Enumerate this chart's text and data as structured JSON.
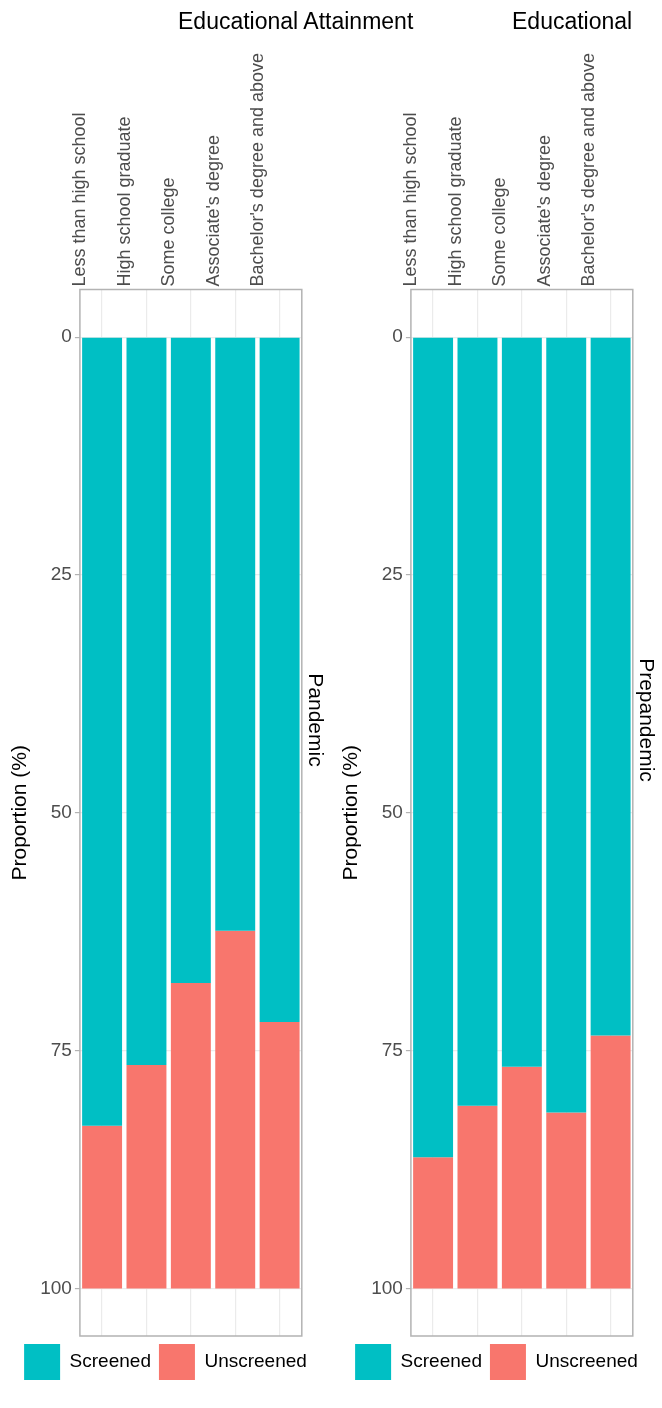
{
  "chart_data": [
    {
      "type": "bar",
      "title": "Educational Attainment",
      "subtitle": "Pandemic",
      "ylabel": "Proportion (%)",
      "stacked": true,
      "categories": [
        "Less than high school",
        "High school graduate",
        "Some college",
        "Associate's degree",
        "Bachelor's degree and above"
      ],
      "series": [
        {
          "name": "Screened",
          "color": "#00bfc4",
          "values": [
            82.9,
            76.5,
            67.9,
            62.4,
            72.0
          ]
        },
        {
          "name": "Unscreened",
          "color": "#f8766d",
          "values": [
            17.1,
            23.5,
            32.1,
            37.6,
            28.0
          ]
        }
      ],
      "ylim": [
        105,
        -5
      ],
      "yticks": [
        0,
        25,
        50,
        75,
        100
      ],
      "grid": true,
      "legend": "bottom"
    },
    {
      "type": "bar",
      "title": "Educational",
      "subtitle": "Prepandemic",
      "ylabel": "Proportion (%)",
      "stacked": true,
      "categories": [
        "Less than high school",
        "High school graduate",
        "Some college",
        "Associate's degree",
        "Bachelor's degree and above"
      ],
      "series": [
        {
          "name": "Screened",
          "color": "#00bfc4",
          "values": [
            86.2,
            80.8,
            76.7,
            81.5,
            73.4
          ]
        },
        {
          "name": "Unscreened",
          "color": "#f8766d",
          "values": [
            13.8,
            19.2,
            23.3,
            18.5,
            26.6
          ]
        }
      ],
      "ylim": [
        105,
        -5
      ],
      "yticks": [
        0,
        25,
        50,
        75,
        100
      ],
      "grid": true,
      "legend": "bottom"
    }
  ]
}
